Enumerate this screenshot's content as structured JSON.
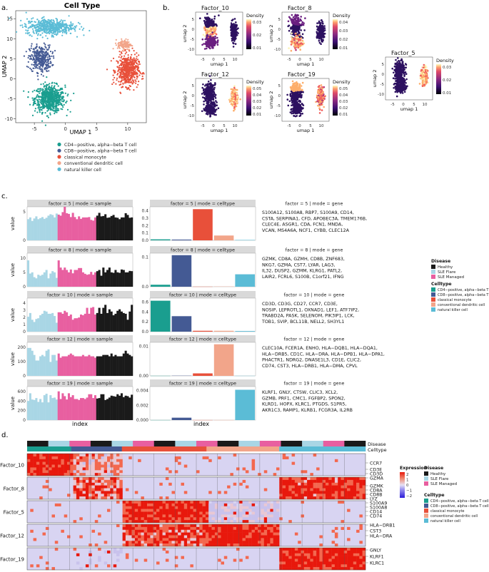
{
  "colors": {
    "cd4": "#1a9e8f",
    "cd8": "#445a94",
    "mono": "#e8503a",
    "dc": "#f2a58a",
    "nk": "#5bbcd6",
    "healthy": "#1a1a1a",
    "sle_flare": "#a9d6e5",
    "sle_managed": "#e85fa0"
  },
  "panel_a": {
    "label": "a.",
    "title": "Cell Type",
    "xlabel": "UMAP 1",
    "ylabel": "UMAP 2",
    "xticks": [
      "-5",
      "0",
      "5",
      "10"
    ],
    "yticks": [
      "15",
      "10",
      "5",
      "0",
      "-5",
      "-10"
    ],
    "legend": [
      "CD4−positive, alpha−beta T cell",
      "CD8−positive, alpha−beta T cell",
      "classical monocyte",
      "conventional dendritic cell",
      "natural killer cell"
    ]
  },
  "panel_b": {
    "label": "b.",
    "xlabel": "umap 1",
    "ylabel": "umap 2",
    "legend_title": "Density",
    "xticks": [
      "-5",
      "0",
      "5",
      "10"
    ],
    "yticks": [
      "5",
      "0",
      "-5",
      "-10"
    ],
    "plots": [
      {
        "title": "Factor_10",
        "ticks": [
          "0.03",
          "0.02",
          "0.01"
        ]
      },
      {
        "title": "Factor_8",
        "ticks": [
          "0.04",
          "0.03",
          "0.02",
          "0.01"
        ]
      },
      {
        "title": "Factor_5",
        "ticks": [
          "0.03",
          "0.02",
          "0.01"
        ]
      },
      {
        "title": "Factor_12",
        "ticks": [
          "0.05",
          "0.04",
          "0.03",
          "0.02",
          "0.01"
        ]
      },
      {
        "title": "Factor_19",
        "ticks": [
          "0.05",
          "0.04",
          "0.03",
          "0.02",
          "0.01"
        ]
      }
    ]
  },
  "panel_c": {
    "label": "c.",
    "xlabel": "index",
    "ylabel": "value",
    "legend": {
      "disease_title": "Disease",
      "disease": [
        "Healthy",
        "SLE Flare",
        "SLE Managed"
      ],
      "celltype_title": "Celltype",
      "celltype": [
        "CD4−positive, alpha−beta T cell",
        "CD8−positive, alpha−beta T cell",
        "classical monocyte",
        "conventional dendritic cell",
        "natural killer cell"
      ]
    },
    "rows": [
      {
        "sample_title": "factor = 5 | mode = sample",
        "celltype_title": "factor = 5 | mode = celltype",
        "gene_title": "factor = 5 | mode = gene",
        "genes": [
          "S100A12, S100A8, RBP7, S100A9, CD14,",
          "CSTA, SERPINA1, CFD, APOBEC3A, TMEM176B,",
          "CLEC4E, ASGR1, CDA, FCN1, MNDA,",
          "VCAN, MS4A6A, NCF1, CYBB, CLEC12A"
        ],
        "sample_yticks": [
          "0",
          "5"
        ],
        "celltype_yticks": [
          "0.0",
          "0.1",
          "0.2",
          "0.3",
          "0.4"
        ]
      },
      {
        "sample_title": "factor = 8 | mode = sample",
        "celltype_title": "factor = 8 | mode = celltype",
        "gene_title": "factor = 8 | mode = gene",
        "genes": [
          "GZMK, CD8A, GZMH, CD8B, ZNF683,",
          "NKG7, GZMA, CST7, LYAR, LAG3,",
          "IL32, DUSP2, GZMM, KLRG1, PATL2,",
          "LAIR2, FCRL6, S100B, C1orf21, IFNG"
        ],
        "sample_yticks": [
          "0",
          "5",
          "10"
        ],
        "celltype_yticks": [
          "0.0",
          "0.1"
        ]
      },
      {
        "sample_title": "factor = 10 | mode = sample",
        "celltype_title": "factor = 10 | mode = celltype",
        "gene_title": "factor = 10 | mode = gene",
        "genes": [
          "CD3D, CD3G, CD27, CCR7, CD3E,",
          "NOSIP, LEPROTL1, OXNAD1, LEF1, ATF7IP2,",
          "TRABD2A, PASK, SELENOM, PIK3IP1, LCK,",
          "TOB1, SVIP, BCL11B, NELL2, SH3YL1"
        ],
        "sample_yticks": [
          "0",
          "1",
          "2",
          "3",
          "4"
        ],
        "celltype_yticks": [
          "0.0",
          "0.2",
          "0.4",
          "0.6"
        ]
      },
      {
        "sample_title": "factor = 12 | mode = sample",
        "celltype_title": "factor = 12 | mode = celltype",
        "gene_title": "factor = 12 | mode = gene",
        "genes": [
          "CLEC10A, FCER1A, ENHO, HLA−DQB1, HLA−DQA1,",
          "HLA−DRB5, CD1C, HLA−DRA, HLA−DPB1, HLA−DPA1,",
          "PHACTR1, NDRG2, DNASE1L3, CD1E, CLIC2,",
          "CD74, CST3, HLA−DRB1, HLA−DMA, CPVL"
        ],
        "sample_yticks": [
          "0",
          "100",
          "200"
        ],
        "celltype_yticks": [
          "0.00",
          "0.01"
        ]
      },
      {
        "sample_title": "factor = 19 | mode = sample",
        "celltype_title": "factor = 19 | mode = celltype",
        "gene_title": "factor = 19 | mode = gene",
        "genes": [
          "KLRF1, GNLY, CTSW, CLIC3, XCL2,",
          "GZMB, PRF1, CMC1, FGFBP2, SPON2,",
          "KLRD1, HOPX, KLRC1, PTGDS, S1PR5,",
          "AKR1C3, RAMP1, KLRB1, FCGR3A, IL2RB"
        ],
        "sample_yticks": [
          "0",
          "200",
          "400",
          "600"
        ],
        "celltype_yticks": [
          "0.000",
          "0.002",
          "0.004"
        ]
      }
    ]
  },
  "panel_d": {
    "label": "d.",
    "track_disease": "Disease",
    "track_celltype": "Celltype",
    "factors": [
      "Factor_10",
      "Factor_8",
      "Factor_5",
      "Factor_12",
      "Factor_19"
    ],
    "genes": [
      "CCR7",
      "CD3E",
      "CD3D",
      "GZMA",
      "GZMK",
      "CD8A",
      "CD8B",
      "LYZ",
      "S100A9",
      "S100A8",
      "CD14",
      "CD74",
      "HLA−DRB1",
      "CST3",
      "HLA−DRA",
      "GNLY",
      "KLRF1",
      "KLRC1"
    ],
    "expr_title": "Expression",
    "expr_ticks": [
      "2",
      "1",
      "0",
      "−1",
      "−2"
    ],
    "disease_title": "Disease",
    "disease": [
      "Healthy",
      "SLE Flare",
      "SLE Managed"
    ],
    "celltype_title": "Celltype",
    "celltype": [
      "CD4−positive, alpha−beta T cell",
      "CD8−positive, alpha−beta T cell",
      "classical monocyte",
      "conventional dendritic cell",
      "natural killer cell"
    ]
  },
  "chart_data": [
    {
      "type": "scatter",
      "title": "Cell Type",
      "xlabel": "UMAP 1",
      "ylabel": "UMAP 2",
      "xlim": [
        -8,
        13
      ],
      "ylim": [
        -11,
        17
      ],
      "clusters": [
        {
          "name": "CD4−positive, alpha−beta T cell",
          "cx": -2.5,
          "cy": -5,
          "sx": 2.2,
          "sy": 3
        },
        {
          "name": "CD8−positive, alpha−beta T cell",
          "cx": -4,
          "cy": 5,
          "sx": 1.6,
          "sy": 3
        },
        {
          "name": "classical monocyte",
          "cx": 10,
          "cy": 2,
          "sx": 1.6,
          "sy": 3.5
        },
        {
          "name": "conventional dendritic cell",
          "cx": 9.5,
          "cy": 8.5,
          "sx": 1,
          "sy": 1.2
        },
        {
          "name": "natural killer cell",
          "cx": -2.5,
          "cy": 13,
          "sx": 3.5,
          "sy": 1.8
        }
      ]
    },
    {
      "type": "bar",
      "panel": "c-sample",
      "note": "per-sample values, ordered SLE Flare, SLE Managed, Healthy",
      "series": [
        {
          "factor": 5,
          "ymax": 9.5,
          "values": [
            6,
            6.5,
            5.5,
            6.2,
            6.8,
            6,
            6.3,
            6.6,
            6.1,
            6.4,
            7,
            7.4,
            7.2,
            6.5,
            7.6,
            7.3,
            7,
            8,
            9.5,
            7.7,
            7.5,
            6.6,
            7.8,
            6.6,
            6,
            6.8,
            6.1,
            6.5,
            6.5,
            6.5,
            6.6,
            5.8,
            5.6,
            6.5,
            7,
            7.8,
            6.8,
            6.9,
            7.4,
            6.4,
            6.5,
            6.9,
            7.2,
            6.5,
            6.4,
            6,
            6.5,
            6.5,
            7.7,
            7.2,
            6.4,
            6.5
          ]
        },
        {
          "factor": 8,
          "ymax": 14,
          "values": [
            11,
            5.5,
            6,
            4,
            3.5,
            5,
            4.6,
            5,
            6,
            7,
            3.5,
            5.5,
            6.5,
            6,
            3.7,
            11,
            8,
            7,
            8,
            7,
            6,
            7.2,
            5.6,
            7,
            7,
            7.8,
            7.8,
            6,
            5.4,
            5,
            5.2,
            6.2,
            5,
            6,
            6.5,
            7,
            4.6,
            8,
            6,
            7,
            8,
            6,
            5.8,
            7,
            6,
            5.8,
            7.2,
            7,
            6,
            6,
            6.6,
            6.5
          ]
        },
        {
          "factor": 10,
          "ymax": 4.5,
          "values": [
            2,
            2.5,
            1.6,
            1.3,
            1.7,
            1.8,
            2.2,
            2.4,
            2.8,
            2.7,
            2.4,
            2.4,
            2.5,
            2.1,
            1.2,
            2.6,
            2.6,
            2.4,
            2.8,
            2.6,
            2.1,
            2.3,
            1.6,
            1.8,
            1.8,
            1.9,
            2.3,
            2.2,
            2.4,
            3.2,
            2.4,
            3.2,
            3.3,
            2.3,
            2.5,
            3.2,
            2.4,
            3.2,
            3.6,
            2.5,
            3,
            2.7,
            2.2,
            2.4,
            2.8,
            3,
            2.7,
            2.5,
            2.4,
            1.6,
            2.7,
            3.6
          ]
        },
        {
          "factor": 12,
          "ymax": 240,
          "values": [
            200,
            200,
            180,
            150,
            110,
            110,
            140,
            150,
            140,
            180,
            190,
            100,
            150,
            150,
            110,
            160,
            130,
            140,
            140,
            140,
            150,
            160,
            150,
            140,
            140,
            140,
            140,
            150,
            140,
            140,
            150,
            140,
            140,
            130,
            140,
            140,
            140,
            150,
            150,
            150,
            140,
            160,
            140,
            150,
            140,
            140,
            140,
            160,
            180,
            160,
            150,
            140
          ]
        },
        {
          "factor": 19,
          "ymax": 700,
          "values": [
            400,
            560,
            430,
            420,
            460,
            380,
            440,
            370,
            520,
            550,
            370,
            520,
            460,
            470,
            430,
            600,
            440,
            560,
            500,
            430,
            560,
            480,
            520,
            440,
            440,
            420,
            460,
            460,
            440,
            470,
            540,
            540,
            460,
            520,
            450,
            460,
            540,
            540,
            420,
            440,
            470,
            510,
            500,
            490,
            540,
            510,
            560,
            480,
            510,
            500,
            470,
            530
          ]
        }
      ]
    },
    {
      "type": "bar",
      "panel": "c-celltype",
      "categories": [
        "CD4−positive, alpha−beta T cell",
        "CD8−positive, alpha−beta T cell",
        "classical monocyte",
        "conventional dendritic cell",
        "natural killer cell"
      ],
      "series": [
        {
          "factor": 5,
          "ymax": 0.43,
          "values": [
            0.013,
            0.01,
            0.4,
            0.062,
            0.005
          ]
        },
        {
          "factor": 8,
          "ymax": 0.17,
          "values": [
            0.01,
            0.16,
            0.0005,
            0.001,
            0.063
          ]
        },
        {
          "factor": 10,
          "ymax": 0.78,
          "values": [
            0.72,
            0.36,
            0.02,
            0.02,
            0.015
          ]
        },
        {
          "factor": 12,
          "ymax": 0.0175,
          "values": [
            5e-05,
            0.0001,
            0.0013,
            0.0165,
            5e-05
          ]
        },
        {
          "factor": 19,
          "ymax": 0.0042,
          "values": [
            1e-05,
            0.0003,
            1e-05,
            1e-05,
            0.0038
          ]
        }
      ]
    },
    {
      "type": "heatmap",
      "panel": "d",
      "color_range": [
        -2,
        2
      ],
      "note": "rows=genes grouped by factor, columns=cells grouped by celltype and disease; values are z-scored expression"
    }
  ]
}
